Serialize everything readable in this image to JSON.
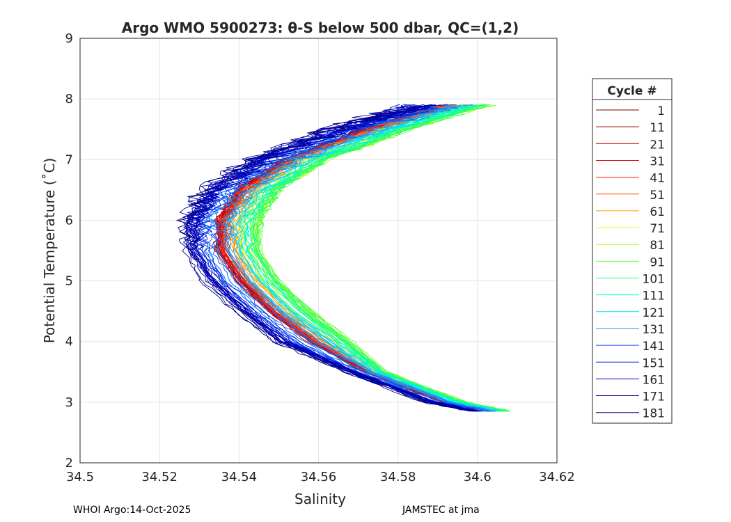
{
  "chart_data": {
    "type": "line",
    "title": "Argo WMO 5900273: θ-S below 500 dbar,  QC=(1,2)",
    "xlabel": "Salinity",
    "ylabel": "Potential Temperature (˚C)",
    "xlim": [
      34.5,
      34.62
    ],
    "ylim": [
      2,
      9
    ],
    "xticks": [
      "34.5",
      "34.52",
      "34.54",
      "34.56",
      "34.58",
      "34.6",
      "34.62"
    ],
    "yticks": [
      "2",
      "3",
      "4",
      "5",
      "6",
      "7",
      "8",
      "9"
    ],
    "grid": true,
    "legend": {
      "title": "Cycle #",
      "placement": "right-outside"
    },
    "temperature_levels": [
      7.9,
      7.5,
      7.0,
      6.5,
      6.0,
      5.5,
      5.0,
      4.5,
      4.0,
      3.5,
      3.0,
      2.85
    ],
    "series": [
      {
        "name": "1",
        "color": "#800000",
        "salinity": [
          34.592,
          34.572,
          34.552,
          34.54,
          34.535,
          34.535,
          34.54,
          34.548,
          34.558,
          34.572,
          34.592,
          34.603
        ]
      },
      {
        "name": "11",
        "color": "#9a0000",
        "salinity": [
          34.592,
          34.572,
          34.552,
          34.54,
          34.535,
          34.535,
          34.54,
          34.548,
          34.558,
          34.572,
          34.592,
          34.603
        ]
      },
      {
        "name": "21",
        "color": "#c00000",
        "salinity": [
          34.593,
          34.573,
          34.553,
          34.541,
          34.536,
          34.536,
          34.541,
          34.549,
          34.559,
          34.573,
          34.593,
          34.604
        ]
      },
      {
        "name": "31",
        "color": "#e00000",
        "salinity": [
          34.592,
          34.572,
          34.552,
          34.54,
          34.535,
          34.535,
          34.54,
          34.548,
          34.558,
          34.572,
          34.592,
          34.603
        ]
      },
      {
        "name": "41",
        "color": "#ff1400",
        "salinity": [
          34.593,
          34.573,
          34.553,
          34.541,
          34.536,
          34.536,
          34.541,
          34.549,
          34.559,
          34.573,
          34.593,
          34.604
        ]
      },
      {
        "name": "51",
        "color": "#ff5000",
        "salinity": [
          34.594,
          34.574,
          34.554,
          34.542,
          34.537,
          34.537,
          34.542,
          34.55,
          34.56,
          34.573,
          34.593,
          34.604
        ]
      },
      {
        "name": "61",
        "color": "#ff9c00",
        "salinity": [
          34.596,
          34.576,
          34.556,
          34.544,
          34.539,
          34.539,
          34.544,
          34.552,
          34.562,
          34.574,
          34.594,
          34.605
        ]
      },
      {
        "name": "71",
        "color": "#f4f400",
        "salinity": [
          34.598,
          34.578,
          34.558,
          34.546,
          34.541,
          34.541,
          34.546,
          34.554,
          34.564,
          34.575,
          34.595,
          34.606
        ]
      },
      {
        "name": "81",
        "color": "#a8ff20",
        "salinity": [
          34.601,
          34.581,
          34.561,
          34.549,
          34.544,
          34.544,
          34.549,
          34.557,
          34.567,
          34.576,
          34.596,
          34.607
        ]
      },
      {
        "name": "91",
        "color": "#60ff30",
        "salinity": [
          34.602,
          34.582,
          34.562,
          34.55,
          34.545,
          34.545,
          34.55,
          34.558,
          34.568,
          34.577,
          34.597,
          34.608
        ]
      },
      {
        "name": "101",
        "color": "#20ff70",
        "salinity": [
          34.601,
          34.581,
          34.561,
          34.549,
          34.544,
          34.544,
          34.549,
          34.557,
          34.567,
          34.576,
          34.596,
          34.607
        ]
      },
      {
        "name": "111",
        "color": "#00ffc0",
        "salinity": [
          34.599,
          34.579,
          34.559,
          34.547,
          34.542,
          34.542,
          34.547,
          34.555,
          34.565,
          34.575,
          34.595,
          34.606
        ]
      },
      {
        "name": "121",
        "color": "#00e0ff",
        "salinity": [
          34.597,
          34.577,
          34.557,
          34.545,
          34.54,
          34.54,
          34.545,
          34.553,
          34.563,
          34.574,
          34.594,
          34.605
        ]
      },
      {
        "name": "131",
        "color": "#1890ff",
        "salinity": [
          34.594,
          34.574,
          34.554,
          34.542,
          34.537,
          34.537,
          34.542,
          34.55,
          34.56,
          34.573,
          34.593,
          34.604
        ]
      },
      {
        "name": "141",
        "color": "#0050ff",
        "salinity": [
          34.589,
          34.569,
          34.549,
          34.537,
          34.532,
          34.532,
          34.537,
          34.545,
          34.555,
          34.57,
          34.59,
          34.601
        ]
      },
      {
        "name": "151",
        "color": "#0020e0",
        "salinity": [
          34.587,
          34.567,
          34.547,
          34.535,
          34.53,
          34.53,
          34.535,
          34.543,
          34.553,
          34.569,
          34.589,
          34.6
        ]
      },
      {
        "name": "161",
        "color": "#0000c8",
        "salinity": [
          34.585,
          34.565,
          34.545,
          34.533,
          34.528,
          34.528,
          34.533,
          34.541,
          34.551,
          34.568,
          34.588,
          34.599
        ]
      },
      {
        "name": "171",
        "color": "#0000a8",
        "salinity": [
          34.586,
          34.566,
          34.546,
          34.534,
          34.529,
          34.529,
          34.534,
          34.542,
          34.552,
          34.569,
          34.589,
          34.6
        ]
      },
      {
        "name": "181",
        "color": "#000088",
        "salinity": [
          34.583,
          34.563,
          34.543,
          34.531,
          34.526,
          34.526,
          34.531,
          34.539,
          34.549,
          34.567,
          34.587,
          34.598
        ]
      }
    ]
  },
  "footer": {
    "left": "WHOI Argo:14-Oct-2025",
    "right": "JAMSTEC at jma"
  }
}
